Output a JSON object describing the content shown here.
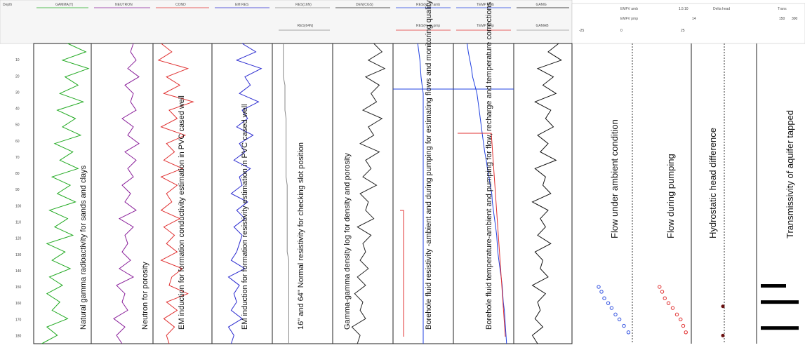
{
  "chart_data": {
    "type": "line",
    "track_headers": [
      "GAMMA(T)",
      "NEUTRON",
      "COND",
      "EM RES",
      "RES(16N)",
      "DEN(CGS)",
      "RES(FLU) amb",
      "TEMP amb",
      "GAMG"
    ],
    "track_subheaders": [
      "RES(64N)",
      "RES(FLU) pmp",
      "TEMP pmp",
      "GAMAB"
    ],
    "right_headers": [
      "EMFV amb",
      "EMFV pmp",
      "Delta head",
      "Trans"
    ],
    "right_header_values": [
      "1.5",
      "10",
      "0",
      "-25",
      "25",
      "14",
      "150",
      "300"
    ],
    "annotations": [
      "Natural gamma radioactivity for sands and clays",
      "Neutron for porosity",
      "EM induction for formation conductivity estimation in PVC cased well",
      "EM induction for formation resistivity estimation in PVC cased well",
      "16\" and 64\" Normal resistivity for checking slot position",
      "Gamma-gamma density log for density and porosity",
      "Borehole fluid resistivity -ambient and during pumping for estimating flows and monitoring quality of water in aquifers tapped",
      "Borehole fluid temperature-ambient and pumping for flow, recharge and temperature corrections",
      "Flow under ambient condition",
      "Flow during pumping",
      "Hydrostatic head difference",
      "Transmissivity of aquifer tapped"
    ],
    "depth_ticks": [
      "10",
      "20",
      "30",
      "40",
      "50",
      "60",
      "70",
      "80",
      "90",
      "100",
      "110",
      "120",
      "130",
      "140",
      "150",
      "160",
      "170",
      "180"
    ],
    "depth_range": [
      0,
      185
    ],
    "series": [
      {
        "values": [
          60,
          95,
          50,
          100,
          55,
          80,
          45,
          90,
          40,
          75,
          50,
          85,
          35,
          70,
          45,
          80,
          30,
          65,
          40,
          75,
          25,
          60,
          35,
          70,
          20,
          55,
          30,
          65,
          25,
          50,
          20,
          45,
          30,
          60,
          20,
          40,
          10
        ]
      },
      {
        "values": [
          70,
          65,
          75,
          60,
          80,
          55,
          70,
          65,
          75,
          50,
          70,
          60,
          80,
          55,
          75,
          60,
          70,
          50,
          65,
          55,
          75,
          45,
          70,
          55,
          60,
          50,
          65,
          45,
          70,
          40,
          55,
          50,
          60,
          35,
          55,
          40,
          50
        ]
      },
      {
        "values": [
          10,
          30,
          5,
          60,
          20,
          45,
          15,
          70,
          25,
          40,
          10,
          55,
          20,
          35,
          15,
          50,
          10,
          40,
          20,
          30,
          10,
          45,
          15,
          35,
          20,
          40,
          10,
          50,
          30,
          25,
          60,
          20,
          40,
          15,
          35,
          20,
          25
        ]
      },
      {
        "values": [
          50,
          75,
          40,
          85,
          55,
          65,
          45,
          80,
          50,
          60,
          40,
          70,
          45,
          55,
          35,
          65,
          45,
          50,
          30,
          60,
          40,
          55,
          35,
          50,
          45,
          40,
          30,
          55,
          25,
          45,
          35,
          40,
          30,
          50,
          25,
          35,
          30
        ]
      },
      {
        "values": [
          15,
          15,
          15,
          15,
          15,
          18,
          18,
          18,
          18,
          20,
          20,
          20,
          20,
          20,
          20,
          20,
          20,
          22,
          22,
          22,
          22,
          22,
          22,
          22,
          22,
          22,
          25,
          25,
          25,
          25,
          25,
          25,
          25,
          25,
          25,
          25,
          25
        ]
      },
      {
        "values": [
          70,
          85,
          60,
          90,
          55,
          80,
          65,
          75,
          50,
          85,
          60,
          70,
          45,
          80,
          55,
          65,
          50,
          75,
          45,
          60,
          55,
          70,
          40,
          65,
          50,
          55,
          45,
          60,
          40,
          55,
          35,
          50,
          45,
          55,
          30,
          45,
          40
        ]
      },
      {
        "values": [
          40,
          42,
          44,
          45,
          46,
          48,
          50,
          50,
          50,
          50,
          50,
          50,
          50,
          50,
          50,
          50,
          50,
          50,
          50,
          50,
          50,
          50,
          50,
          50,
          50,
          50,
          50,
          50,
          50,
          50,
          50,
          50,
          50,
          50,
          50,
          50,
          50
        ]
      },
      {
        "values": [
          20,
          22,
          25,
          28,
          30,
          34,
          38,
          40,
          42,
          44,
          46,
          48,
          50,
          52,
          55,
          57,
          60,
          62,
          65,
          66,
          68,
          70,
          72,
          74,
          75,
          76,
          78,
          80,
          82,
          84,
          85,
          86,
          88,
          89,
          90,
          91,
          92
        ]
      },
      {
        "values": [
          80,
          60,
          85,
          40,
          70,
          50,
          75,
          35,
          65,
          55,
          70,
          40,
          60,
          45,
          75,
          35,
          55,
          50,
          65,
          30,
          60,
          45,
          55,
          40,
          65,
          35,
          50,
          45,
          60,
          30,
          55,
          40,
          45,
          35,
          50,
          30,
          40
        ]
      }
    ],
    "flow_ambient_points": [
      [
        0.35,
        150
      ],
      [
        0.4,
        153
      ],
      [
        0.45,
        157
      ],
      [
        0.52,
        160
      ],
      [
        0.58,
        163
      ],
      [
        0.65,
        167
      ],
      [
        0.72,
        170
      ],
      [
        0.8,
        174
      ],
      [
        0.88,
        178
      ]
    ],
    "flow_pumping_points": [
      [
        0.55,
        150
      ],
      [
        0.5,
        153
      ],
      [
        0.45,
        157
      ],
      [
        0.38,
        160
      ],
      [
        0.3,
        163
      ],
      [
        0.22,
        167
      ],
      [
        0.15,
        170
      ],
      [
        0.1,
        174
      ],
      [
        0.05,
        178
      ]
    ],
    "head_points": [
      0.3,
      0.25
    ],
    "trans_bars": [
      [
        150,
        0.6
      ],
      [
        160,
        0.9
      ],
      [
        176,
        0.9
      ]
    ],
    "grid": false
  },
  "colors": {
    "gamma": "#22aa22",
    "neutron": "#8a1f9a",
    "cond": "#e03030",
    "emres": "#2a2ad0",
    "res16": "#888888",
    "den": "#222222",
    "flu_amb": "#2040e0",
    "flu_pmp": "#e03030",
    "temp_amb": "#2040e0",
    "temp_pmp": "#e03030",
    "gamg": "#111111",
    "gamab": "#999999",
    "flow_amb": "#3050e0",
    "flow_pmp": "#e03030",
    "head": "#6a1010",
    "trans": "#000000"
  }
}
